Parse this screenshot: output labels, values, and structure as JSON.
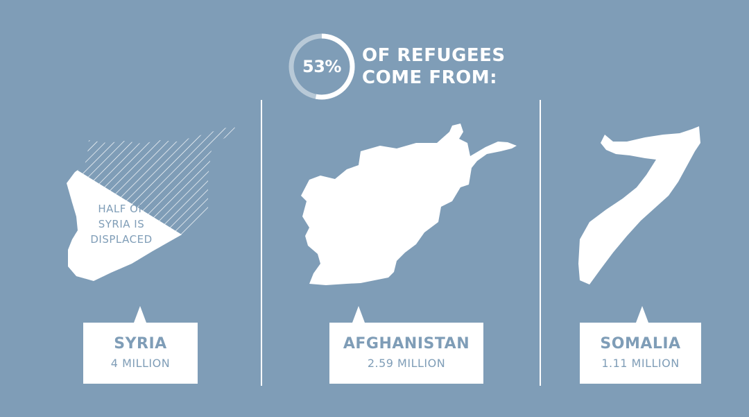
{
  "header": {
    "percent": "53%",
    "percent_fraction": 0.53,
    "headline_line1": "OF REFUGEES",
    "headline_line2": "COME FROM:"
  },
  "countries": [
    {
      "name": "SYRIA",
      "value": "4 MILLION",
      "note": "HALF OF SYRIA IS DISPLACED"
    },
    {
      "name": "AFGHANISTAN",
      "value": "2.59 MILLION"
    },
    {
      "name": "SOMALIA",
      "value": "1.11 MILLION"
    }
  ],
  "colors": {
    "background": "#7f9db7",
    "foreground": "#ffffff"
  }
}
